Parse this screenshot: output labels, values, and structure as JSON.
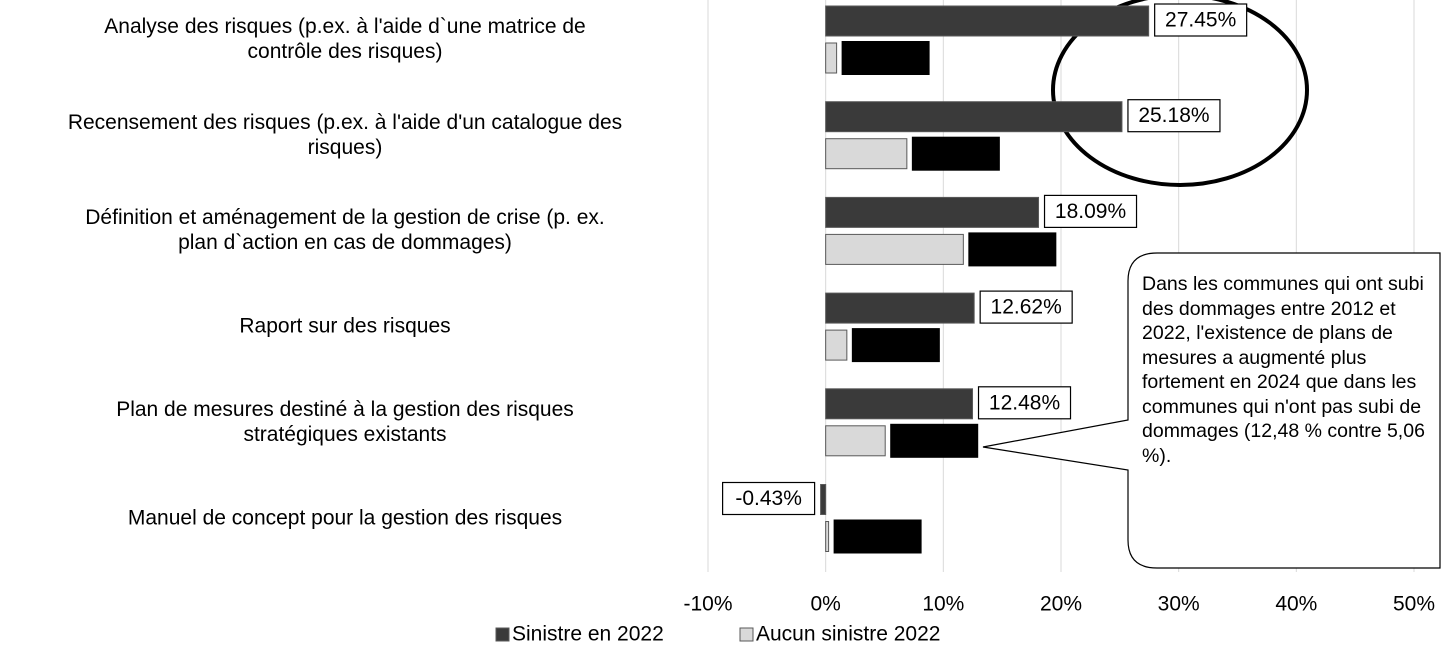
{
  "chart_data": {
    "type": "bar",
    "orientation": "horizontal",
    "categories": [
      "Analyse des risques (p.ex. à l'aide d`une matrice de\ncontrôle des risques)",
      "Recensement des risques (p.ex. à l'aide d'un catalogue des\nrisques)",
      "Définition et aménagement de la gestion de crise (p. ex.\nplan d`action en cas de dommages)",
      "Raport sur des risques",
      "Plan de mesures destiné à la gestion des risques\nstratégiques existants",
      "Manuel de concept pour la gestion des risques"
    ],
    "series": [
      {
        "name": "Sinistre en 2022",
        "color": "#3a3a3a",
        "values": [
          27.45,
          25.18,
          18.09,
          12.62,
          12.48,
          -0.43
        ],
        "value_labels": [
          "27.45%",
          "25.18%",
          "18.09%",
          "12.62%",
          "12.48%",
          "-0.43%"
        ]
      },
      {
        "name": "Aucun sinistre 2022",
        "color": "#d9d9d9",
        "values": [
          0.93,
          6.9,
          11.7,
          1.8,
          5.06,
          0.25
        ]
      }
    ],
    "xlim": [
      -10,
      50
    ],
    "xticks": [
      {
        "value": -10,
        "label": "-10%"
      },
      {
        "value": 0,
        "label": "0%"
      },
      {
        "value": 10,
        "label": "10%"
      },
      {
        "value": 20,
        "label": "20%"
      },
      {
        "value": 30,
        "label": "30%"
      },
      {
        "value": 40,
        "label": "40%"
      },
      {
        "value": 50,
        "label": "50%"
      }
    ],
    "grid": true,
    "legend": "bottom",
    "annotation": "Dans les communes qui ont subi des dommages entre 2012 et 2022, l'existence de plans de mesures a augmenté plus fortement en 2024 que dans les communes qui n'ont pas subi de dommages (12,48 % contre 5,06 %)."
  }
}
